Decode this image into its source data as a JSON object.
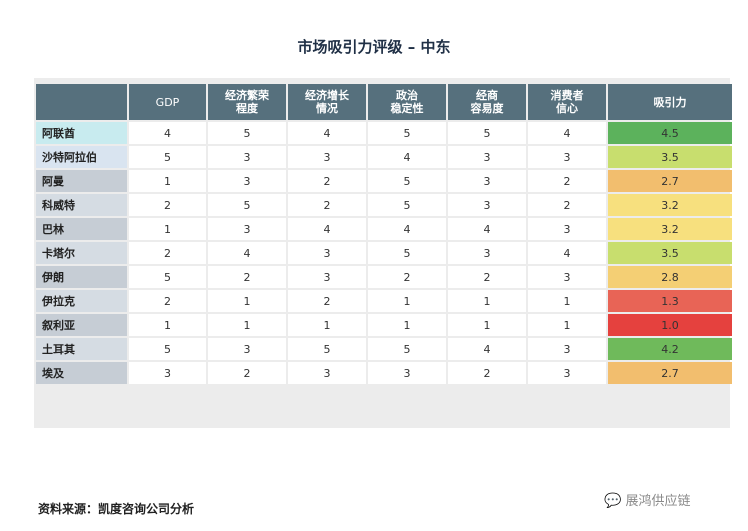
{
  "title": "市场吸引力评级 – 中东",
  "footer": "资料来源：凯度咨询公司分析",
  "watermark": {
    "icon": "wechat-icon",
    "text": "展鸿供应链"
  },
  "chart_data": {
    "type": "table",
    "columns": [
      "GDP",
      "经济繁荣\n程度",
      "经济增长\n情况",
      "政治\n稳定性",
      "经商\n容易度",
      "消费者\n信心",
      "吸引力"
    ],
    "rows": [
      {
        "country": "阿联酋",
        "values": [
          4,
          5,
          4,
          5,
          5,
          4
        ],
        "score": "4.5",
        "score_color": "#5cb25c",
        "row_color": "#c8ebef"
      },
      {
        "country": "沙特阿拉伯",
        "values": [
          5,
          3,
          3,
          4,
          3,
          3
        ],
        "score": "3.5",
        "score_color": "#c8de6e",
        "row_color": "#d9e4f0"
      },
      {
        "country": "阿曼",
        "values": [
          1,
          3,
          2,
          5,
          3,
          2
        ],
        "score": "2.7",
        "score_color": "#f2be6e",
        "row_color": "#c6cdd5"
      },
      {
        "country": "科威特",
        "values": [
          2,
          5,
          2,
          5,
          3,
          2
        ],
        "score": "3.2",
        "score_color": "#f7e07e",
        "row_color": "#d5dce3"
      },
      {
        "country": "巴林",
        "values": [
          1,
          3,
          4,
          4,
          4,
          3
        ],
        "score": "3.2",
        "score_color": "#f7e07e",
        "row_color": "#c6cdd5"
      },
      {
        "country": "卡塔尔",
        "values": [
          2,
          4,
          3,
          5,
          3,
          4
        ],
        "score": "3.5",
        "score_color": "#c8de6e",
        "row_color": "#d5dce3"
      },
      {
        "country": "伊朗",
        "values": [
          5,
          2,
          3,
          2,
          2,
          3
        ],
        "score": "2.8",
        "score_color": "#f4cf74",
        "row_color": "#c6cdd5"
      },
      {
        "country": "伊拉克",
        "values": [
          2,
          1,
          2,
          1,
          1,
          1
        ],
        "score": "1.3",
        "score_color": "#e86456",
        "row_color": "#d5dce3"
      },
      {
        "country": "叙利亚",
        "values": [
          1,
          1,
          1,
          1,
          1,
          1
        ],
        "score": "1.0",
        "score_color": "#e5413e",
        "row_color": "#c6cdd5"
      },
      {
        "country": "土耳其",
        "values": [
          5,
          3,
          5,
          5,
          4,
          3
        ],
        "score": "4.2",
        "score_color": "#6fba5b",
        "row_color": "#d5dce3"
      },
      {
        "country": "埃及",
        "values": [
          3,
          2,
          3,
          3,
          2,
          3
        ],
        "score": "2.7",
        "score_color": "#f2be6e",
        "row_color": "#c6cdd5"
      }
    ]
  }
}
